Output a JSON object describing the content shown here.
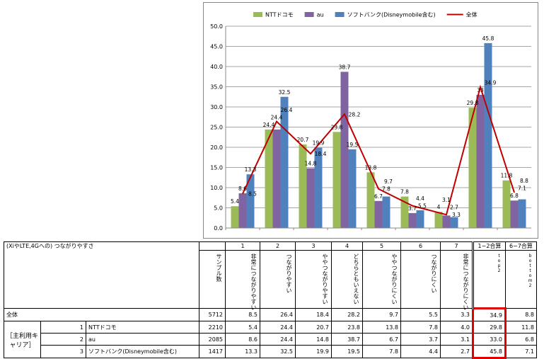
{
  "chart_data": {
    "type": "bar",
    "categories": [
      "1",
      "2",
      "3",
      "4",
      "5",
      "6",
      "7",
      "1-2合算",
      "6-7合算"
    ],
    "series": [
      {
        "name": "NTTドコモ",
        "type": "bar",
        "color": "#9bbb59",
        "values": [
          5.4,
          24.4,
          20.7,
          23.8,
          13.8,
          7.8,
          4.0,
          29.8,
          11.8
        ]
      },
      {
        "name": "au",
        "type": "bar",
        "color": "#8064a2",
        "values": [
          8.6,
          24.4,
          14.8,
          38.7,
          6.7,
          3.7,
          3.1,
          33.0,
          6.8
        ]
      },
      {
        "name": "ソフトバンク(Disneymobile含む)",
        "type": "bar",
        "color": "#4f81bd",
        "values": [
          13.3,
          32.5,
          19.9,
          19.5,
          7.8,
          4.4,
          2.7,
          45.8,
          7.1
        ]
      },
      {
        "name": "全体",
        "type": "line",
        "color": "#c00000",
        "values": [
          8.5,
          26.4,
          18.4,
          28.2,
          9.7,
          5.5,
          3.3,
          34.9,
          8.8
        ]
      }
    ],
    "yticks": [
      "0.0",
      "5.0",
      "10.0",
      "15.0",
      "20.0",
      "25.0",
      "30.0",
      "35.0",
      "40.0",
      "45.0",
      "50.0"
    ],
    "ylim": [
      0,
      50
    ],
    "grid": true,
    "legend": "top"
  },
  "table": {
    "title": "(XiやLTE,4Gへの) つながりやすさ",
    "col_nums": [
      "1",
      "2",
      "3",
      "4",
      "5",
      "6",
      "7",
      "1−2合算",
      "6−7合算"
    ],
    "sample_header": "サンプル数",
    "col_labels": [
      "非常につながりやすい",
      "つながりやすい",
      "ややつながりやすい",
      "どちらともいえない",
      "ややつながりにくい",
      "つながりにくい",
      "非常につながりにくい",
      "top2",
      "bottom2"
    ],
    "group_label": "［主利用キャリア］",
    "rows": [
      {
        "num": "",
        "label": "全体",
        "n": "5712",
        "vals": [
          "8.5",
          "26.4",
          "18.4",
          "28.2",
          "9.7",
          "5.5",
          "3.3",
          "34.9",
          "8.8"
        ]
      },
      {
        "num": "1",
        "label": "NTTドコモ",
        "n": "2210",
        "vals": [
          "5.4",
          "24.4",
          "20.7",
          "23.8",
          "13.8",
          "7.8",
          "4.0",
          "29.8",
          "11.8"
        ]
      },
      {
        "num": "2",
        "label": "au",
        "n": "2085",
        "vals": [
          "8.6",
          "24.4",
          "14.8",
          "38.7",
          "6.7",
          "3.7",
          "3.1",
          "33.0",
          "6.8"
        ]
      },
      {
        "num": "3",
        "label": "ソフトバンク(Disneymobile含む)",
        "n": "1417",
        "vals": [
          "13.3",
          "32.5",
          "19.9",
          "19.5",
          "7.8",
          "4.4",
          "2.7",
          "45.8",
          "7.1"
        ]
      }
    ]
  }
}
